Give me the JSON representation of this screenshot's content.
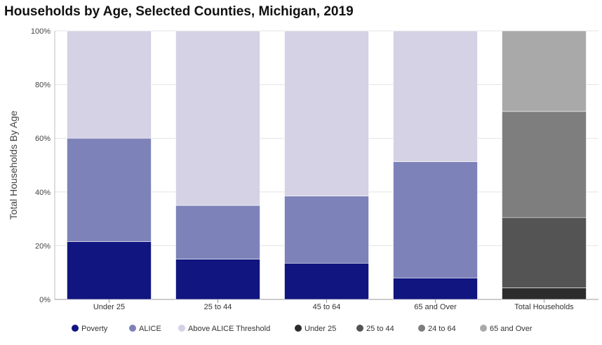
{
  "chart_data": {
    "type": "bar",
    "stacked": true,
    "title": "Households by Age, Selected Counties, Michigan, 2019",
    "xlabel": "",
    "ylabel": "Total Households By Age",
    "ylim": [
      0,
      100
    ],
    "y_ticks": [
      "0%",
      "20%",
      "40%",
      "60%",
      "80%",
      "100%"
    ],
    "grid": true,
    "categories": [
      "Under 25",
      "25 to 44",
      "45 to 64",
      "65 and Over",
      "Total Households"
    ],
    "series": [
      {
        "name": "Poverty",
        "color": "#11157f",
        "values": [
          21.5,
          15,
          13.5,
          8,
          null
        ]
      },
      {
        "name": "ALICE",
        "color": "#7d83b8",
        "values": [
          38.5,
          20,
          25,
          43.3,
          null
        ]
      },
      {
        "name": "Above ALICE Threshold",
        "color": "#d4d2e4",
        "values": [
          40,
          65,
          61.5,
          48.7,
          null
        ]
      },
      {
        "name": "Under 25",
        "color": "#2c2c2c",
        "values": [
          null,
          null,
          null,
          null,
          4.3
        ]
      },
      {
        "name": "25 to 44",
        "color": "#545454",
        "values": [
          null,
          null,
          null,
          null,
          26.2
        ]
      },
      {
        "name": "24 to 64",
        "color": "#7e7e7e",
        "values": [
          null,
          null,
          null,
          null,
          39.5
        ]
      },
      {
        "name": "65 and Over",
        "color": "#a9a9a9",
        "values": [
          null,
          null,
          null,
          null,
          30
        ]
      }
    ],
    "legend_position": "bottom"
  }
}
